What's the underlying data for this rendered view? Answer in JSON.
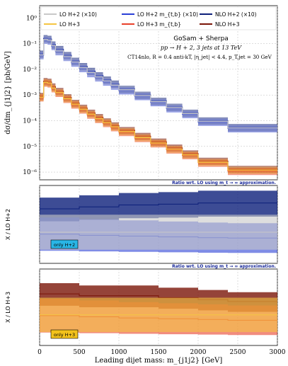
{
  "chart_data": {
    "type": "line",
    "xlabel": "Leading dijet mass: m_{j1j2} [GeV]",
    "xlim": [
      0,
      3000
    ],
    "xticks": [
      "0",
      "500",
      "1000",
      "1500",
      "2000",
      "2500",
      "3000"
    ],
    "grid": true,
    "legend": {
      "position": "top",
      "entries": [
        {
          "label": "LO H+2 (×10)",
          "color": "#c8c8c8"
        },
        {
          "label": "LO H+3",
          "color": "#f5c542"
        },
        {
          "label": "LO H+2 m_{t,b} (×10)",
          "color": "#2a3fd6"
        },
        {
          "label": "LO H+3 m_{t,b}",
          "color": "#e8402a"
        },
        {
          "label": "NLO H+2 (×10)",
          "color": "#0d1f7a"
        },
        {
          "label": "NLO H+3",
          "color": "#7a1508"
        }
      ]
    },
    "annotations": {
      "generator": "GoSam + Sherpa",
      "process": "pp → H + 2, 3 jets at 13 TeV",
      "cuts": "CT14nlo, R = 0.4 anti-kT, |η_jet| < 4.4, p_T,jet = 30 GeV"
    },
    "panels": [
      {
        "ylabel": "dσ/dm_{j1j2} [pb/GeV]",
        "scale": "log",
        "ylim": [
          5e-07,
          3
        ],
        "yticks": [
          {
            "v": 1e-06,
            "label": "10⁻⁶"
          },
          {
            "v": 1e-05,
            "label": "10⁻⁵"
          },
          {
            "v": 0.0001,
            "label": "10⁻⁴"
          },
          {
            "v": 0.001,
            "label": "10⁻³"
          },
          {
            "v": 0.01,
            "label": "10⁻²"
          },
          {
            "v": 0.1,
            "label": "10⁻¹"
          },
          {
            "v": 1,
            "label": "10⁰"
          }
        ],
        "x": [
          0,
          50,
          100,
          150,
          200,
          300,
          400,
          500,
          600,
          700,
          800,
          900,
          1000,
          1200,
          1400,
          1600,
          1800,
          2000,
          2375,
          3000
        ],
        "series": [
          {
            "name": "NLO H+2 (×10)",
            "color": "#0d1f7a",
            "values": [
              0.04,
              0.16,
              0.15,
              0.09,
              0.06,
              0.035,
              0.021,
              0.013,
              0.0085,
              0.0057,
              0.0039,
              0.0027,
              0.0017,
              0.001,
              0.00058,
              0.00034,
              0.0002,
              0.0001,
              5.5e-05
            ]
          },
          {
            "name": "LO H+2 m_{t,b} (×10)",
            "color": "#2a3fd6",
            "values": [
              0.035,
              0.14,
              0.13,
              0.08,
              0.05,
              0.03,
              0.018,
              0.011,
              0.007,
              0.0048,
              0.0033,
              0.0023,
              0.0015,
              0.0009,
              0.00052,
              0.0003,
              0.00018,
              9e-05,
              5e-05
            ]
          },
          {
            "name": "LO H+2 (×10)",
            "color": "#c8c8c8",
            "values": [
              0.036,
              0.145,
              0.135,
              0.083,
              0.052,
              0.031,
              0.019,
              0.0115,
              0.0074,
              0.005,
              0.0035,
              0.0024,
              0.0016,
              0.00095,
              0.00055,
              0.00032,
              0.00019,
              9.5e-05,
              5.2e-05
            ]
          },
          {
            "name": "NLO H+3",
            "color": "#7a1508",
            "values": [
              0.0009,
              0.0034,
              0.0032,
              0.0021,
              0.0014,
              0.0008,
              0.00048,
              0.00031,
              0.0002,
              0.000135,
              9.2e-05,
              6.4e-05,
              4.2e-05,
              2.5e-05,
              1.5e-05,
              8.8e-06,
              5.2e-06,
              2.7e-06,
              1.3e-06
            ]
          },
          {
            "name": "LO H+3 m_{t,b}",
            "color": "#e8402a",
            "values": [
              0.0008,
              0.003,
              0.0028,
              0.0018,
              0.0012,
              0.0007,
              0.00042,
              0.00027,
              0.00017,
              0.000115,
              8e-05,
              5.5e-05,
              3.6e-05,
              2.1e-05,
              1.3e-05,
              7.5e-06,
              4.5e-06,
              2.3e-06,
              1.1e-06
            ]
          },
          {
            "name": "LO H+3",
            "color": "#f5c542",
            "values": [
              0.00082,
              0.0031,
              0.0029,
              0.00185,
              0.00125,
              0.00072,
              0.00044,
              0.00028,
              0.00018,
              0.00012,
              8.4e-05,
              5.8e-05,
              3.8e-05,
              2.2e-05,
              1.35e-05,
              7.8e-06,
              4.7e-06,
              2.4e-06,
              1.2e-06
            ]
          }
        ]
      },
      {
        "title": "Ratio wrt. LO using m_t → ∞ approximation.",
        "ylabel": "X / LO H+2",
        "tag": "only H+2",
        "tag_color": "#29b6e6",
        "ylim": [
          0.2,
          2.2
        ],
        "x": [
          0,
          500,
          1000,
          1500,
          2000,
          2375,
          3000
        ],
        "series": [
          {
            "name": "NLO H+2 (×10)",
            "color": "#0d1f7a",
            "values": [
              1.6,
              1.65,
              1.7,
              1.72,
              1.75,
              1.75
            ]
          },
          {
            "name": "LO H+2 m_{t,b} (×10)",
            "color": "#2a3fd6",
            "values": [
              0.95,
              0.92,
              0.9,
              0.88,
              0.86,
              0.85
            ]
          },
          {
            "name": "LO H+2 (×10)",
            "color": "#c8c8c8",
            "values": [
              1.0,
              1.0,
              1.0,
              1.0,
              1.0,
              1.0
            ]
          }
        ]
      },
      {
        "title": "Ratio wrt. LO using m_t → ∞ approximation.",
        "ylabel": "X / LO H+3",
        "tag": "only H+3",
        "tag_color": "#f2c21b",
        "ylim": [
          0.2,
          2.2
        ],
        "x": [
          0,
          500,
          1000,
          1500,
          2000,
          2375,
          3000
        ],
        "series": [
          {
            "name": "NLO H+3",
            "color": "#7a1508",
            "values": [
              1.55,
              1.5,
              1.5,
              1.45,
              1.4,
              1.35
            ]
          },
          {
            "name": "LO H+3 m_{t,b}",
            "color": "#e8402a",
            "values": [
              0.98,
              0.95,
              0.92,
              0.9,
              0.88,
              0.86
            ]
          },
          {
            "name": "LO H+3",
            "color": "#f5c542",
            "values": [
              1.0,
              1.0,
              1.0,
              1.0,
              1.0,
              1.0
            ]
          }
        ]
      }
    ]
  }
}
